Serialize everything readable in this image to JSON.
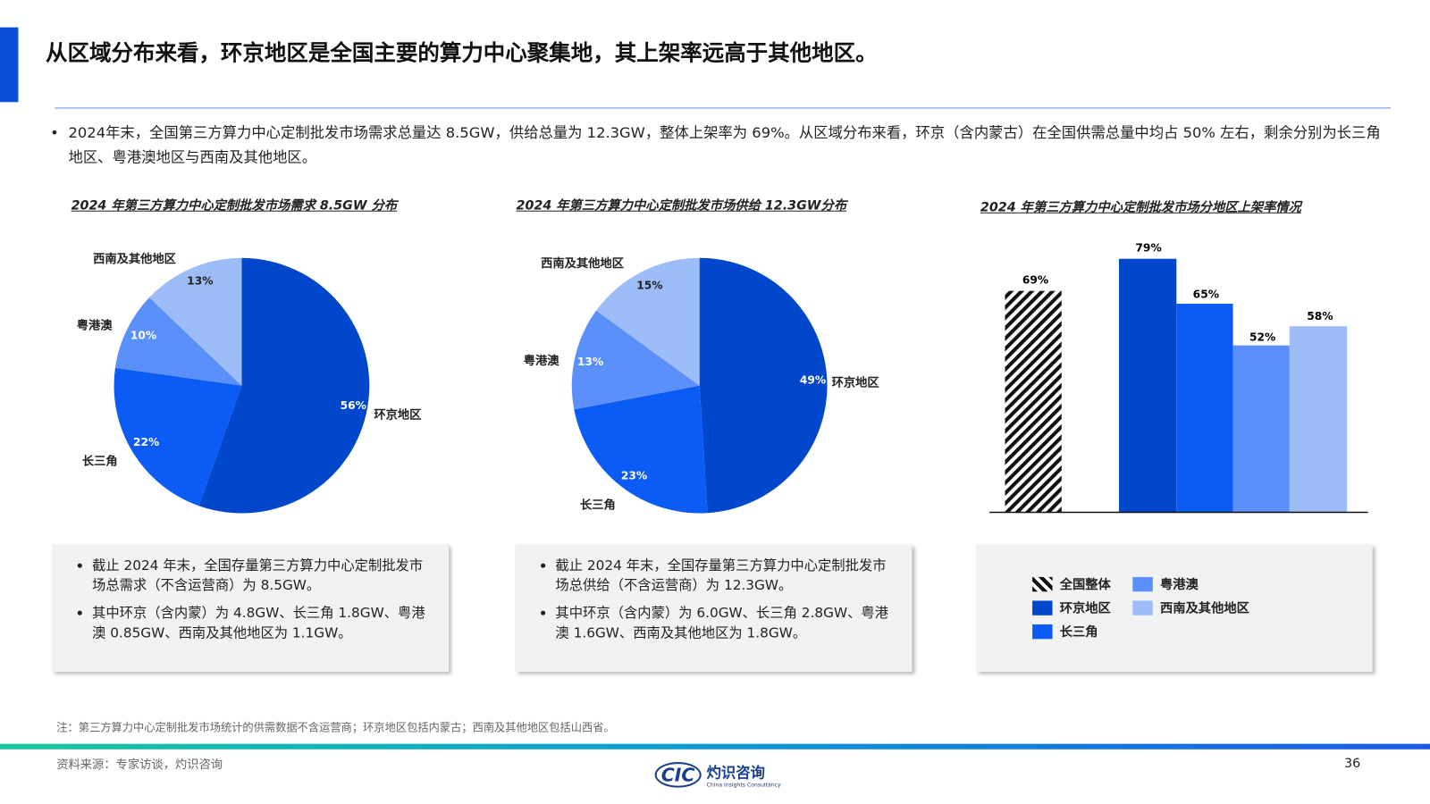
{
  "title": "从区域分布来看，环京地区是全国主要的算力中心聚集地，其上架率远高于其他地区。",
  "summary": "2024年末，全国第三方算力中心定制批发市场需求总量达 8.5GW，供给总量为 12.3GW，整体上架率为 69%。从区域分布来看，环京（含内蒙古）在全国供需总量中均占 50% 左右，剩余分别为长三角地区、粤港澳地区与西南及其他地区。",
  "colors": {
    "环京地区": "#0047cc",
    "长三角": "#0a5cf5",
    "粤港澳": "#5b8ff9",
    "西南及其他地区": "#9dbdf9",
    "accent": "#0a4fd8"
  },
  "chart_data": [
    {
      "type": "pie",
      "title": "2024 年第三方算力中心定制批发市场需求 8.5GW 分布",
      "categories": [
        "环京地区",
        "长三角",
        "粤港澳",
        "西南及其他地区"
      ],
      "values": [
        56,
        22,
        10,
        13
      ],
      "labels": [
        "56%",
        "22%",
        "10%",
        "13%"
      ]
    },
    {
      "type": "pie",
      "title": "2024 年第三方算力中心定制批发市场供给 12.3GW分布",
      "categories": [
        "环京地区",
        "长三角",
        "粤港澳",
        "西南及其他地区"
      ],
      "values": [
        49,
        23,
        13,
        15
      ],
      "labels": [
        "49%",
        "23%",
        "13%",
        "15%"
      ]
    },
    {
      "type": "bar",
      "title": "2024 年第三方算力中心定制批发市场分地区上架率情况",
      "categories": [
        "全国整体",
        "环京地区",
        "长三角",
        "粤港澳",
        "西南及其他地区"
      ],
      "values": [
        69,
        79,
        65,
        52,
        58
      ],
      "labels": [
        "69%",
        "79%",
        "65%",
        "52%",
        "58%"
      ],
      "ylim": [
        0,
        100
      ],
      "legend": "bottom"
    }
  ],
  "boxes": [
    [
      "截止 2024 年末，全国存量第三方算力中心定制批发市场总需求（不含运营商）为 8.5GW。",
      "其中环京（含内蒙）为 4.8GW、长三角 1.8GW、粤港澳 0.85GW、西南及其他地区为 1.1GW。"
    ],
    [
      "截止 2024 年末，全国存量第三方算力中心定制批发市场总供给（不含运营商）为 12.3GW。",
      "其中环京（含内蒙）为 6.0GW、长三角 2.8GW、粤港澳 1.6GW、西南及其他地区为 1.8GW。"
    ]
  ],
  "note": "注：第三方算力中心定制批发市场统计的供需数据不含运营商；环京地区包括内蒙古；西南及其他地区包括山西省。",
  "source": "资料来源：专家访谈，灼识咨询",
  "page_number": "36",
  "logo": {
    "mark": "CIC",
    "name": "灼识咨询",
    "sub": "China Insights Consultancy"
  }
}
